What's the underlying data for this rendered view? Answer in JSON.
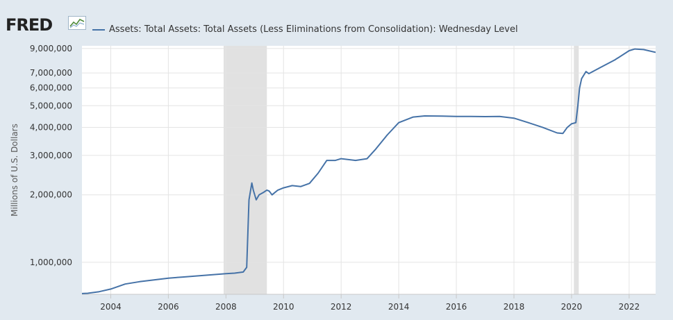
{
  "header": {
    "logo_text": "FRED",
    "logo_icon": "line-chart-icon"
  },
  "chart_data": {
    "type": "line",
    "title": "",
    "xlabel": "",
    "ylabel": "Millions of U.S. Dollars",
    "y_scale": "log",
    "ylim": [
      720000,
      9250000
    ],
    "xlim": [
      2003.0,
      2022.92
    ],
    "grid": true,
    "legend_placement": "top-left",
    "x_ticks": [
      2004,
      2006,
      2008,
      2010,
      2012,
      2014,
      2016,
      2018,
      2020,
      2022
    ],
    "y_ticks": [
      1000000,
      2000000,
      3000000,
      4000000,
      5000000,
      6000000,
      7000000,
      9000000
    ],
    "y_tick_labels": [
      "1,000,000",
      "2,000,000",
      "3,000,000",
      "4,000,000",
      "5,000,000",
      "6,000,000",
      "7,000,000",
      "9,000,000"
    ],
    "recessions": [
      [
        2007.92,
        2009.42
      ],
      [
        2020.08,
        2020.25
      ]
    ],
    "series": [
      {
        "name": "Assets: Total Assets: Total Assets (Less Eliminations from Consolidation): Wednesday Level",
        "color": "#4572a7",
        "x": [
          2002.96,
          2003.2,
          2003.6,
          2004.0,
          2004.5,
          2005.0,
          2005.5,
          2006.0,
          2006.5,
          2007.0,
          2007.5,
          2008.0,
          2008.3,
          2008.6,
          2008.72,
          2008.8,
          2008.9,
          2008.95,
          2009.05,
          2009.15,
          2009.3,
          2009.42,
          2009.5,
          2009.6,
          2009.7,
          2009.8,
          2010.0,
          2010.3,
          2010.6,
          2010.9,
          2011.2,
          2011.5,
          2011.8,
          2012.0,
          2012.5,
          2012.9,
          2013.2,
          2013.6,
          2014.0,
          2014.5,
          2014.9,
          2015.5,
          2016.0,
          2016.5,
          2017.0,
          2017.5,
          2018.0,
          2018.5,
          2019.0,
          2019.5,
          2019.7,
          2019.85,
          2020.0,
          2020.15,
          2020.22,
          2020.28,
          2020.35,
          2020.5,
          2020.6,
          2021.0,
          2021.5,
          2022.0,
          2022.2,
          2022.5,
          2022.92
        ],
        "y": [
          725000,
          728000,
          740000,
          760000,
          800000,
          820000,
          835000,
          850000,
          860000,
          870000,
          880000,
          890000,
          895000,
          905000,
          950000,
          1900000,
          2260000,
          2100000,
          1900000,
          2000000,
          2050000,
          2100000,
          2080000,
          2000000,
          2050000,
          2100000,
          2150000,
          2200000,
          2180000,
          2250000,
          2500000,
          2850000,
          2850000,
          2900000,
          2850000,
          2900000,
          3200000,
          3700000,
          4200000,
          4450000,
          4500000,
          4490000,
          4480000,
          4480000,
          4470000,
          4480000,
          4400000,
          4200000,
          4000000,
          3780000,
          3760000,
          4000000,
          4150000,
          4200000,
          5000000,
          6000000,
          6600000,
          7100000,
          6950000,
          7400000,
          8000000,
          8800000,
          8950000,
          8900000,
          8650000
        ]
      }
    ]
  }
}
